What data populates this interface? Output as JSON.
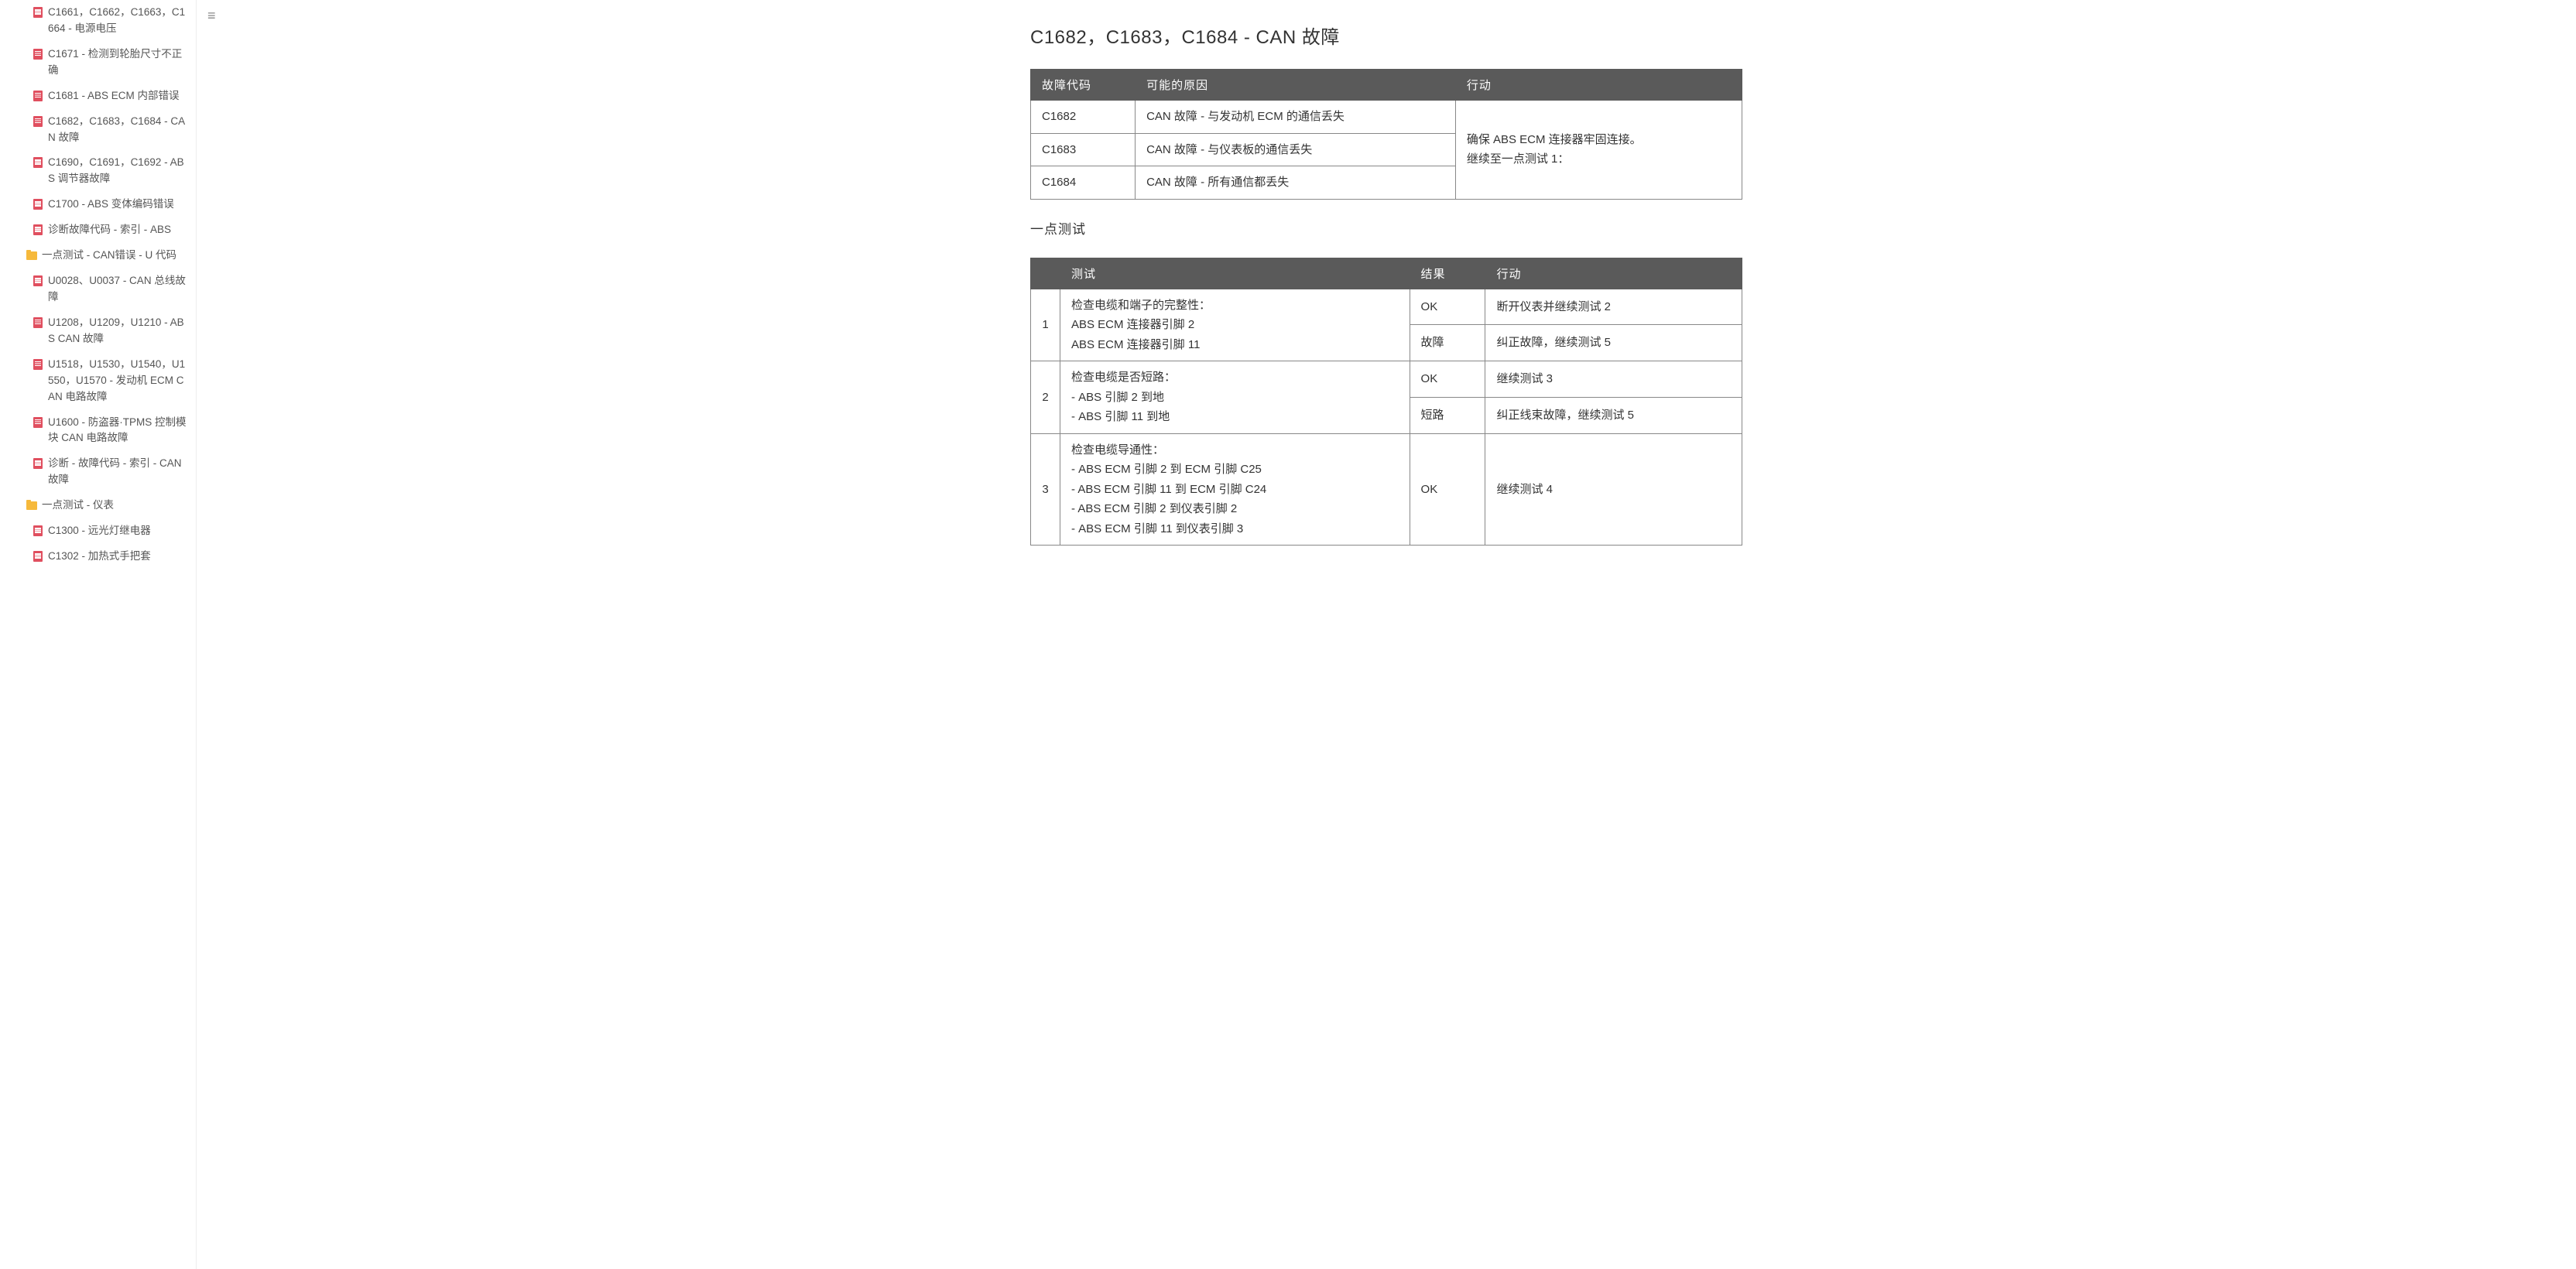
{
  "menuToggleGlyph": "≡",
  "sidebar": {
    "items": [
      {
        "type": "file",
        "level": 1,
        "label": "C1661，C1662，C1663，C1664 - 电源电压"
      },
      {
        "type": "file",
        "level": 1,
        "label": "C1671 - 检测到轮胎尺寸不正确"
      },
      {
        "type": "file",
        "level": 1,
        "label": "C1681 - ABS ECM 内部错误"
      },
      {
        "type": "file",
        "level": 1,
        "label": "C1682，C1683，C1684 - CAN 故障"
      },
      {
        "type": "file",
        "level": 1,
        "label": "C1690，C1691，C1692 - ABS 调节器故障"
      },
      {
        "type": "file",
        "level": 1,
        "label": "C1700 - ABS 变体编码错误"
      },
      {
        "type": "file",
        "level": 1,
        "label": "诊断故障代码 - 索引 - ABS"
      },
      {
        "type": "folder",
        "level": 0,
        "label": "一点测试 - CAN错误 - U 代码"
      },
      {
        "type": "file",
        "level": 1,
        "label": "U0028、U0037 - CAN 总线故障"
      },
      {
        "type": "file",
        "level": 1,
        "label": "U1208，U1209，U1210 - ABS CAN 故障"
      },
      {
        "type": "file",
        "level": 1,
        "label": "U1518，U1530，U1540，U1550，U1570 - 发动机 ECM CAN 电路故障"
      },
      {
        "type": "file",
        "level": 1,
        "label": "U1600 - 防盗器·TPMS 控制模块 CAN 电路故障"
      },
      {
        "type": "file",
        "level": 1,
        "label": "诊断 - 故障代码 - 索引 - CAN 故障"
      },
      {
        "type": "folder",
        "level": 0,
        "label": "一点测试 - 仪表"
      },
      {
        "type": "file",
        "level": 1,
        "label": "C1300 - 远光灯继电器"
      },
      {
        "type": "file",
        "level": 1,
        "label": "C1302 - 加热式手把套"
      }
    ]
  },
  "page": {
    "title": "C1682，C1683，C1684 - CAN 故障",
    "table1": {
      "headers": [
        "故障代码",
        "可能的原因",
        "行动"
      ],
      "rows": [
        [
          "C1682",
          "CAN 故障 - 与发动机 ECM 的通信丢失"
        ],
        [
          "C1683",
          "CAN 故障 - 与仪表板的通信丢失"
        ],
        [
          "C1684",
          "CAN 故障 - 所有通信都丢失"
        ]
      ],
      "actionMerged": "确保 ABS ECM 连接器牢固连接。\n继续至一点测试 1："
    },
    "section2": "一点测试",
    "table2": {
      "headers": [
        "",
        "测试",
        "结果",
        "行动"
      ],
      "rows": [
        {
          "num": "1",
          "test": "检查电缆和端子的完整性：\nABS ECM 连接器引脚 2\nABS ECM 连接器引脚 11",
          "results": [
            {
              "r": "OK",
              "a": "断开仪表并继续测试 2"
            },
            {
              "r": "故障",
              "a": "纠正故障，继续测试 5"
            }
          ]
        },
        {
          "num": "2",
          "test": "检查电缆是否短路：\n- ABS 引脚 2 到地\n- ABS 引脚 11 到地",
          "results": [
            {
              "r": "OK",
              "a": "继续测试 3"
            },
            {
              "r": "短路",
              "a": "纠正线束故障，继续测试 5"
            }
          ]
        },
        {
          "num": "3",
          "test": "检查电缆导通性：\n- ABS ECM 引脚 2 到 ECM 引脚 C25\n- ABS ECM 引脚 11 到 ECM 引脚 C24\n- ABS ECM 引脚 2 到仪表引脚 2\n- ABS ECM 引脚 11 到仪表引脚 3",
          "results": [
            {
              "r": "OK",
              "a": "继续测试 4"
            }
          ]
        }
      ]
    }
  }
}
